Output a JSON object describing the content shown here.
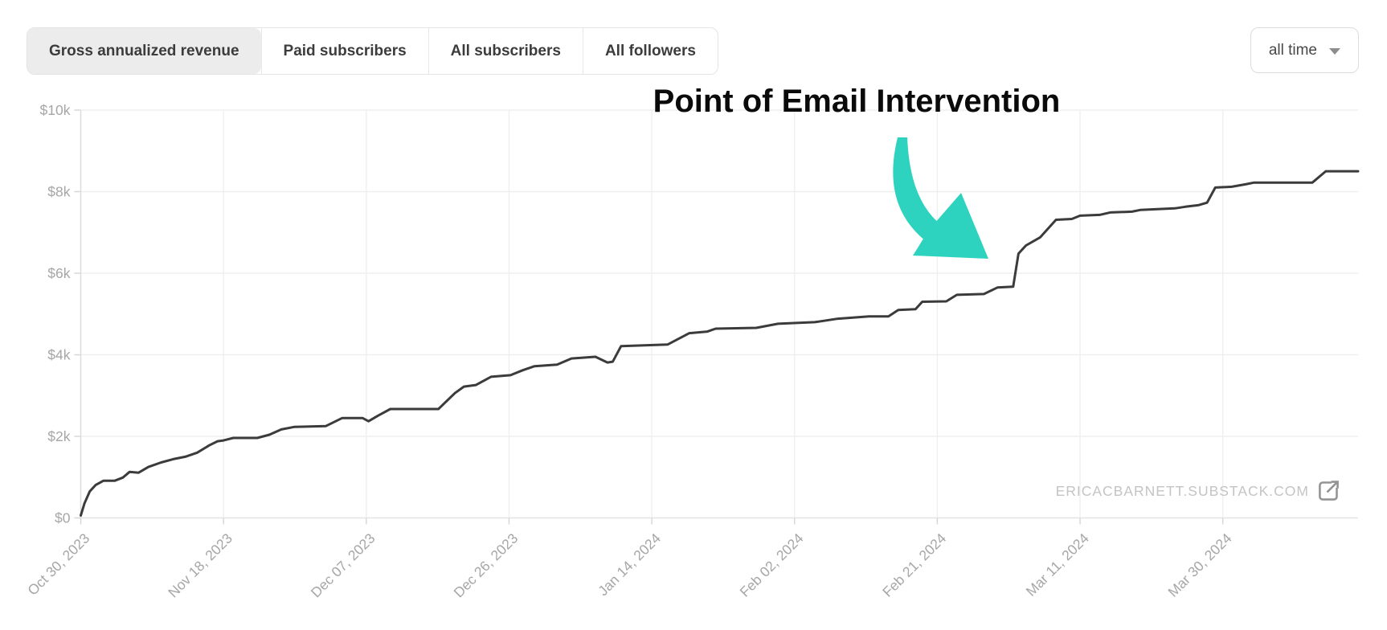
{
  "header": {
    "tabs": [
      {
        "label": "Gross annualized revenue",
        "selected": true
      },
      {
        "label": "Paid subscribers",
        "selected": false
      },
      {
        "label": "All subscribers",
        "selected": false
      },
      {
        "label": "All followers",
        "selected": false
      }
    ],
    "range_selector": {
      "label": "all time",
      "icon": "caret-down-icon"
    }
  },
  "annotation": {
    "text": "Point of Email Intervention",
    "arrow_icon": "curved-arrow-down-right",
    "arrow_color": "#2ed3c0"
  },
  "source_link": {
    "text": "ERICACBARNETT.SUBSTACK.COM",
    "icon": "external-link-icon"
  },
  "colors": {
    "line": "#3b3b3b",
    "grid": "#efefef",
    "baseline": "#e3e3e3",
    "axis": "#dcdcdc",
    "tick": "#d5d5d5",
    "tick_label": "#a6a6a6",
    "tab_selected_bg": "#ececec",
    "source_text": "#c4c4c4",
    "source_icon": "#949494"
  },
  "chart_data": {
    "type": "line",
    "title": "Gross annualized revenue over time",
    "series_name": "Gross annualized revenue",
    "x_unit": "days since Oct 30, 2023",
    "xlim": [
      0,
      170
    ],
    "ylim": [
      0,
      10000
    ],
    "grid": true,
    "legend": "none",
    "yticks": [
      {
        "label": "$0",
        "value": 0
      },
      {
        "label": "$2k",
        "value": 2000
      },
      {
        "label": "$4k",
        "value": 4000
      },
      {
        "label": "$6k",
        "value": 6000
      },
      {
        "label": "$8k",
        "value": 8000
      },
      {
        "label": "$10k",
        "value": 10000
      }
    ],
    "xticks": [
      {
        "label": "Oct 30, 2023",
        "day": 0
      },
      {
        "label": "Nov 18, 2023",
        "day": 19
      },
      {
        "label": "Dec 07, 2023",
        "day": 38
      },
      {
        "label": "Dec 26, 2023",
        "day": 57
      },
      {
        "label": "Jan 14, 2024",
        "day": 76
      },
      {
        "label": "Feb 02, 2024",
        "day": 95
      },
      {
        "label": "Feb 21, 2024",
        "day": 114
      },
      {
        "label": "Mar 11, 2024",
        "day": 133
      },
      {
        "label": "Mar 30, 2024",
        "day": 152
      }
    ],
    "points": [
      [
        0,
        60
      ],
      [
        0.5,
        360
      ],
      [
        1.2,
        650
      ],
      [
        2,
        810
      ],
      [
        3,
        910
      ],
      [
        4.5,
        910
      ],
      [
        5.6,
        990
      ],
      [
        6.5,
        1130
      ],
      [
        7.7,
        1110
      ],
      [
        9,
        1250
      ],
      [
        10.7,
        1360
      ],
      [
        12.3,
        1440
      ],
      [
        13.9,
        1500
      ],
      [
        15.5,
        1600
      ],
      [
        17.1,
        1780
      ],
      [
        18.2,
        1880
      ],
      [
        19,
        1900
      ],
      [
        20.3,
        1960
      ],
      [
        23.5,
        1960
      ],
      [
        25.1,
        2040
      ],
      [
        26.7,
        2170
      ],
      [
        28.4,
        2230
      ],
      [
        32.6,
        2250
      ],
      [
        34.8,
        2450
      ],
      [
        37.5,
        2450
      ],
      [
        38.3,
        2370
      ],
      [
        39.6,
        2510
      ],
      [
        41.2,
        2670
      ],
      [
        47.6,
        2670
      ],
      [
        49.8,
        3060
      ],
      [
        51,
        3220
      ],
      [
        52.6,
        3260
      ],
      [
        54.6,
        3460
      ],
      [
        57.2,
        3500
      ],
      [
        58.8,
        3620
      ],
      [
        60.4,
        3720
      ],
      [
        63.4,
        3760
      ],
      [
        65.3,
        3910
      ],
      [
        68.5,
        3950
      ],
      [
        70.1,
        3810
      ],
      [
        70.8,
        3830
      ],
      [
        71.9,
        4210
      ],
      [
        78.1,
        4250
      ],
      [
        81,
        4530
      ],
      [
        83.4,
        4570
      ],
      [
        84.5,
        4640
      ],
      [
        89.9,
        4660
      ],
      [
        92.8,
        4760
      ],
      [
        97.7,
        4800
      ],
      [
        100.6,
        4880
      ],
      [
        104.9,
        4940
      ],
      [
        107.5,
        4940
      ],
      [
        108.8,
        5100
      ],
      [
        111.1,
        5120
      ],
      [
        112,
        5300
      ],
      [
        115.2,
        5310
      ],
      [
        116.6,
        5470
      ],
      [
        120.2,
        5490
      ],
      [
        122,
        5650
      ],
      [
        124.1,
        5670
      ],
      [
        124.8,
        6480
      ],
      [
        125.8,
        6680
      ],
      [
        127.7,
        6880
      ],
      [
        129.8,
        7310
      ],
      [
        131.9,
        7330
      ],
      [
        133,
        7410
      ],
      [
        135.6,
        7430
      ],
      [
        137,
        7490
      ],
      [
        139.9,
        7510
      ],
      [
        141,
        7550
      ],
      [
        145.6,
        7590
      ],
      [
        147,
        7630
      ],
      [
        148.8,
        7670
      ],
      [
        149.9,
        7730
      ],
      [
        151,
        8100
      ],
      [
        153.2,
        8120
      ],
      [
        155,
        8180
      ],
      [
        156.1,
        8220
      ],
      [
        163.9,
        8220
      ],
      [
        165.7,
        8500
      ],
      [
        170,
        8500
      ]
    ]
  }
}
